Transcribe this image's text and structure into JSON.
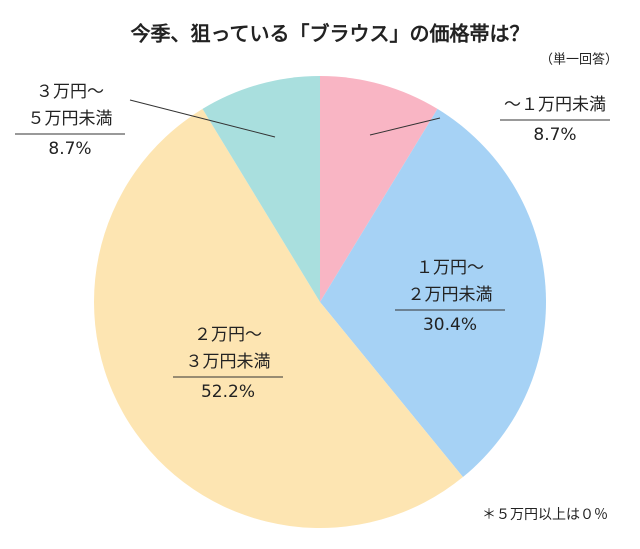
{
  "chart_data": {
    "type": "pie",
    "title": "今季、狙っている「ブラウス」の価格帯は？",
    "subtitle": "（単一回答）",
    "note": "＊５万円以上は０％",
    "categories": [
      [
        "～１万円未満"
      ],
      [
        "１万円～",
        "２万円未満"
      ],
      [
        "２万円～",
        "３万円未満"
      ],
      [
        "３万円～",
        "５万円未満"
      ]
    ],
    "values": [
      8.7,
      30.4,
      52.2,
      8.7
    ],
    "value_labels": [
      "8.7%",
      "30.4%",
      "52.2%",
      "8.7%"
    ],
    "colors": [
      "#f9b5c4",
      "#a6d2f5",
      "#fde5b2",
      "#a9dfde"
    ]
  }
}
